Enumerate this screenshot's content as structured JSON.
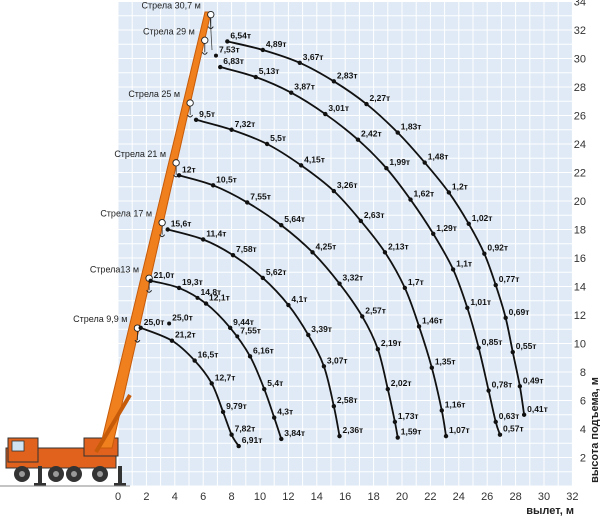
{
  "chart_data": {
    "type": "line",
    "xlabel": "вылет, м",
    "ylabel": "высота подъема, м",
    "xlim": [
      0,
      32
    ],
    "ylim": [
      0,
      34
    ],
    "x_ticks": [
      0,
      2,
      4,
      6,
      8,
      10,
      12,
      14,
      16,
      18,
      20,
      22,
      24,
      26,
      28,
      30,
      32
    ],
    "y_ticks": [
      2,
      4,
      6,
      8,
      10,
      12,
      14,
      16,
      18,
      20,
      22,
      24,
      26,
      28,
      30,
      32,
      34
    ],
    "grid": true,
    "boom_labels": [
      {
        "text": "Стрела 30,7 м",
        "height": 33.5
      },
      {
        "text": "Стрела 29 м",
        "height": 31.7
      },
      {
        "text": "Стрела 25 м",
        "height": 27.3
      },
      {
        "text": "Стрела 21 м",
        "height": 23.1
      },
      {
        "text": "Стрела 17 м",
        "height": 18.9
      },
      {
        "text": "Стрела13 м",
        "height": 15.0
      },
      {
        "text": "Стрела  9,9 м",
        "height": 11.5
      }
    ],
    "series": [
      {
        "name": "Стрела  9,9 м",
        "points": [
          {
            "x": 1.6,
            "y": 11.1,
            "label": "25,0т"
          },
          {
            "x": 3.8,
            "y": 10.2,
            "label": "21,2т"
          },
          {
            "x": 5.4,
            "y": 8.8,
            "label": "16,5т"
          },
          {
            "x": 6.6,
            "y": 7.2,
            "label": "12,7т"
          },
          {
            "x": 7.4,
            "y": 5.2,
            "label": "9,79т"
          },
          {
            "x": 8.0,
            "y": 3.6,
            "label": "7,82т"
          },
          {
            "x": 8.5,
            "y": 2.8,
            "label": "6,91т"
          }
        ]
      },
      {
        "name": "Стрела13 м",
        "points": [
          {
            "x": 2.3,
            "y": 14.4,
            "label": "21,0т"
          },
          {
            "x": 4.3,
            "y": 13.9,
            "label": "19,3т"
          },
          {
            "x": 6.2,
            "y": 12.8,
            "label": "12,1т"
          },
          {
            "x": 7.9,
            "y": 11.1,
            "label": "9,44т"
          },
          {
            "x": 9.3,
            "y": 9.1,
            "label": "6,16т"
          },
          {
            "x": 10.3,
            "y": 6.8,
            "label": "5,4т"
          },
          {
            "x": 11.0,
            "y": 4.8,
            "label": "4,3т"
          },
          {
            "x": 11.5,
            "y": 3.3,
            "label": "3,84т"
          }
        ]
      },
      {
        "name": "Стрела 17 м",
        "points": [
          {
            "x": 3.5,
            "y": 18.0,
            "label": "15,6т"
          },
          {
            "x": 6.0,
            "y": 17.3,
            "label": "11,4т"
          },
          {
            "x": 8.1,
            "y": 16.2,
            "label": "7,58т"
          },
          {
            "x": 10.2,
            "y": 14.6,
            "label": "5,62т"
          },
          {
            "x": 12.0,
            "y": 12.7,
            "label": "4,1т"
          },
          {
            "x": 13.4,
            "y": 10.6,
            "label": "3,39т"
          },
          {
            "x": 14.5,
            "y": 8.4,
            "label": "3,07т"
          },
          {
            "x": 15.2,
            "y": 5.6,
            "label": "2,58т"
          },
          {
            "x": 15.6,
            "y": 3.5,
            "label": "2,36т"
          }
        ]
      },
      {
        "name": "Стрела 21 м",
        "points": [
          {
            "x": 4.3,
            "y": 21.8,
            "label": "12т"
          },
          {
            "x": 6.7,
            "y": 21.1,
            "label": "10,5т"
          },
          {
            "x": 9.1,
            "y": 19.9,
            "label": "7,55т"
          },
          {
            "x": 11.5,
            "y": 18.3,
            "label": "5,64т"
          },
          {
            "x": 13.7,
            "y": 16.4,
            "label": "4,25т"
          },
          {
            "x": 15.6,
            "y": 14.2,
            "label": "3,32т"
          },
          {
            "x": 17.2,
            "y": 11.9,
            "label": "2,57т"
          },
          {
            "x": 18.3,
            "y": 9.6,
            "label": "2,19т"
          },
          {
            "x": 19.0,
            "y": 6.8,
            "label": "2,02т"
          },
          {
            "x": 19.5,
            "y": 4.5,
            "label": "1,73т"
          },
          {
            "x": 19.7,
            "y": 3.4,
            "label": "1,59т"
          }
        ]
      },
      {
        "name": "Стрела 25 м",
        "points": [
          {
            "x": 5.5,
            "y": 25.7,
            "label": "9,5т"
          },
          {
            "x": 8.0,
            "y": 25.0,
            "label": "7,32т"
          },
          {
            "x": 10.5,
            "y": 24.0,
            "label": "5,5т"
          },
          {
            "x": 12.9,
            "y": 22.5,
            "label": "4,15т"
          },
          {
            "x": 15.2,
            "y": 20.7,
            "label": "3,26т"
          },
          {
            "x": 17.1,
            "y": 18.6,
            "label": "2,63т"
          },
          {
            "x": 18.8,
            "y": 16.4,
            "label": "2,13т"
          },
          {
            "x": 20.2,
            "y": 13.9,
            "label": "1,7т"
          },
          {
            "x": 21.2,
            "y": 11.2,
            "label": "1,46т"
          },
          {
            "x": 22.1,
            "y": 8.3,
            "label": "1,35т"
          },
          {
            "x": 22.8,
            "y": 5.3,
            "label": "1,16т"
          },
          {
            "x": 23.1,
            "y": 3.5,
            "label": "1,07т"
          }
        ]
      },
      {
        "name": "Стрела 29 м",
        "points": [
          {
            "x": 7.2,
            "y": 29.4,
            "label": "6,83т"
          },
          {
            "x": 9.7,
            "y": 28.7,
            "label": "5,13т"
          },
          {
            "x": 12.2,
            "y": 27.6,
            "label": "3,87т"
          },
          {
            "x": 14.6,
            "y": 26.1,
            "label": "3,01т"
          },
          {
            "x": 16.9,
            "y": 24.3,
            "label": "2,42т"
          },
          {
            "x": 18.9,
            "y": 22.3,
            "label": "1,99т"
          },
          {
            "x": 20.6,
            "y": 20.1,
            "label": "1,62т"
          },
          {
            "x": 22.2,
            "y": 17.7,
            "label": "1,29т"
          },
          {
            "x": 23.6,
            "y": 15.2,
            "label": "1,1т"
          },
          {
            "x": 24.6,
            "y": 12.5,
            "label": "1,01т"
          },
          {
            "x": 25.4,
            "y": 9.7,
            "label": "0,85т"
          },
          {
            "x": 26.1,
            "y": 6.7,
            "label": "0,78т"
          },
          {
            "x": 26.6,
            "y": 4.5,
            "label": "0,63т"
          },
          {
            "x": 26.9,
            "y": 3.6,
            "label": "0,57т"
          }
        ]
      },
      {
        "name": "Стрела 30,7 м",
        "points": [
          {
            "x": 7.7,
            "y": 31.2,
            "label": "6,54т"
          },
          {
            "x": 10.2,
            "y": 30.6,
            "label": "4,89т"
          },
          {
            "x": 12.8,
            "y": 29.7,
            "label": "3,67т"
          },
          {
            "x": 15.2,
            "y": 28.4,
            "label": "2,83т"
          },
          {
            "x": 17.5,
            "y": 26.8,
            "label": "2,27т"
          },
          {
            "x": 19.7,
            "y": 24.8,
            "label": "1,83т"
          },
          {
            "x": 21.6,
            "y": 22.7,
            "label": "1,48т"
          },
          {
            "x": 23.3,
            "y": 20.6,
            "label": "1,2т"
          },
          {
            "x": 24.7,
            "y": 18.4,
            "label": "1,02т"
          },
          {
            "x": 25.8,
            "y": 16.3,
            "label": "0,92т"
          },
          {
            "x": 26.6,
            "y": 14.1,
            "label": "0,77т"
          },
          {
            "x": 27.3,
            "y": 11.8,
            "label": "0,69т"
          },
          {
            "x": 27.8,
            "y": 9.4,
            "label": "0,55т"
          },
          {
            "x": 28.3,
            "y": 7.0,
            "label": "0,49т"
          },
          {
            "x": 28.6,
            "y": 5.0,
            "label": "0,41т"
          }
        ]
      }
    ],
    "extra_labels": [
      {
        "text": "7,53т",
        "x": 6.9,
        "y": 30.2
      },
      {
        "text": "14,8т",
        "x": 5.6,
        "y": 13.2
      },
      {
        "text": "25,0т",
        "x": 3.6,
        "y": 11.4
      },
      {
        "text": "7,55т",
        "x": 8.4,
        "y": 10.5
      }
    ],
    "colors": {
      "grid_bg": "#dfeaf6",
      "grid_line": "#ffffff",
      "curve": "#111111",
      "boom": "#f07f1e",
      "boom_dark": "#c65b0a",
      "truck_body": "#e0621c",
      "truck_dark": "#333333"
    },
    "icons": [
      "crane-truck-icon",
      "boom-pulley-icon"
    ]
  }
}
